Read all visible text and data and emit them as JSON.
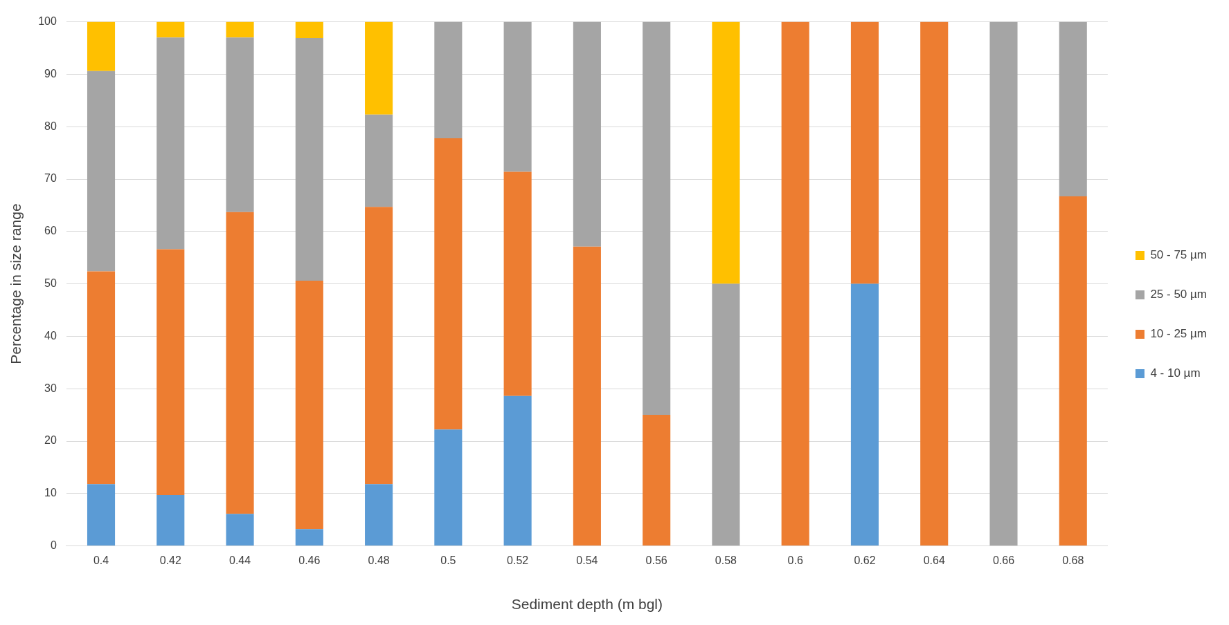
{
  "chart_data": {
    "type": "bar",
    "stacked": true,
    "xlabel": "Sediment depth (m bgl)",
    "ylabel": "Percentage in size range",
    "categories": [
      "0.4",
      "0.42",
      "0.44",
      "0.46",
      "0.48",
      "0.5",
      "0.52",
      "0.54",
      "0.56",
      "0.58",
      "0.6",
      "0.62",
      "0.64",
      "0.66",
      "0.68"
    ],
    "series": [
      {
        "name": "4 - 10 µm",
        "color": "#5b9bd5",
        "values": [
          11.8,
          9.7,
          6.1,
          3.2,
          11.8,
          22.2,
          28.6,
          0,
          0,
          0,
          0,
          50,
          0,
          0,
          0
        ]
      },
      {
        "name": "10 - 25 µm",
        "color": "#ed7d31",
        "values": [
          40.6,
          46.9,
          57.6,
          47.4,
          52.9,
          55.6,
          42.8,
          57.1,
          25,
          0,
          100,
          50,
          100,
          0,
          66.7
        ]
      },
      {
        "name": "25 - 50 µm",
        "color": "#a5a5a5",
        "values": [
          38.2,
          40.4,
          33.3,
          46.3,
          17.6,
          22.2,
          28.6,
          42.9,
          75,
          50,
          0,
          0,
          0,
          100,
          33.3
        ]
      },
      {
        "name": "50 - 75 µm",
        "color": "#ffc000",
        "values": [
          9.4,
          3.0,
          3.0,
          3.1,
          17.7,
          0,
          0,
          0,
          0,
          50,
          0,
          0,
          0,
          0,
          0
        ]
      }
    ],
    "ylim": [
      0,
      100
    ],
    "yticks": [
      0,
      10,
      20,
      30,
      40,
      50,
      60,
      70,
      80,
      90,
      100
    ],
    "grid": "y",
    "legend": "right"
  }
}
